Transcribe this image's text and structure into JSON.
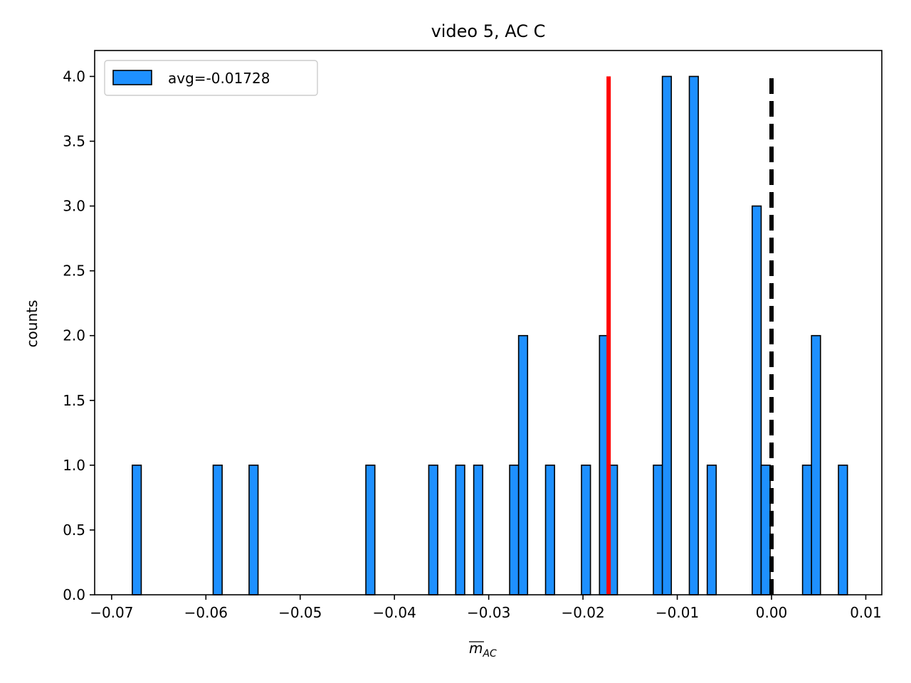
{
  "chart_data": {
    "type": "bar",
    "title": "video 5, AC C",
    "xlabel_base": "m",
    "xlabel_sub": "AC",
    "ylabel": "counts",
    "xlim": [
      -0.0718,
      0.0117
    ],
    "ylim": [
      0,
      4.2
    ],
    "xticks": [
      -0.07,
      -0.06,
      -0.05,
      -0.04,
      -0.03,
      -0.02,
      -0.01,
      0.0,
      0.01
    ],
    "xtick_labels": [
      "−0.07",
      "−0.06",
      "−0.05",
      "−0.04",
      "−0.03",
      "−0.02",
      "−0.01",
      "0.00",
      "0.01"
    ],
    "yticks": [
      0.0,
      0.5,
      1.0,
      1.5,
      2.0,
      2.5,
      3.0,
      3.5,
      4.0
    ],
    "ytick_labels": [
      "0.0",
      "0.5",
      "1.0",
      "1.5",
      "2.0",
      "2.5",
      "3.0",
      "3.5",
      "4.0"
    ],
    "bin_width": 0.000953,
    "bins": [
      {
        "x0": -0.06781,
        "count": 1
      },
      {
        "x0": -0.05923,
        "count": 1
      },
      {
        "x0": -0.05542,
        "count": 1
      },
      {
        "x0": -0.04303,
        "count": 1
      },
      {
        "x0": -0.03636,
        "count": 1
      },
      {
        "x0": -0.0335,
        "count": 1
      },
      {
        "x0": -0.03159,
        "count": 1
      },
      {
        "x0": -0.02778,
        "count": 1
      },
      {
        "x0": -0.02683,
        "count": 2
      },
      {
        "x0": -0.02397,
        "count": 1
      },
      {
        "x0": -0.02016,
        "count": 1
      },
      {
        "x0": -0.01825,
        "count": 2
      },
      {
        "x0": -0.0173,
        "count": 1
      },
      {
        "x0": -0.01253,
        "count": 1
      },
      {
        "x0": -0.01158,
        "count": 4
      },
      {
        "x0": -0.00872,
        "count": 4
      },
      {
        "x0": -0.00682,
        "count": 1
      },
      {
        "x0": -0.00205,
        "count": 3
      },
      {
        "x0": -0.0011,
        "count": 1
      },
      {
        "x0": 0.00329,
        "count": 1
      },
      {
        "x0": 0.00424,
        "count": 2
      },
      {
        "x0": 0.0071,
        "count": 1
      }
    ],
    "avg_line": {
      "x": -0.01728,
      "y_top": 4.0,
      "color": "#ff0000"
    },
    "zero_line": {
      "x": 0.0,
      "y_top": 4.0,
      "color": "#000000"
    },
    "bar_color": "#1e90ff",
    "edge_color": "#000000",
    "legend": {
      "label": "avg=-0.01728",
      "placement": "upper-left"
    },
    "grid": false
  }
}
